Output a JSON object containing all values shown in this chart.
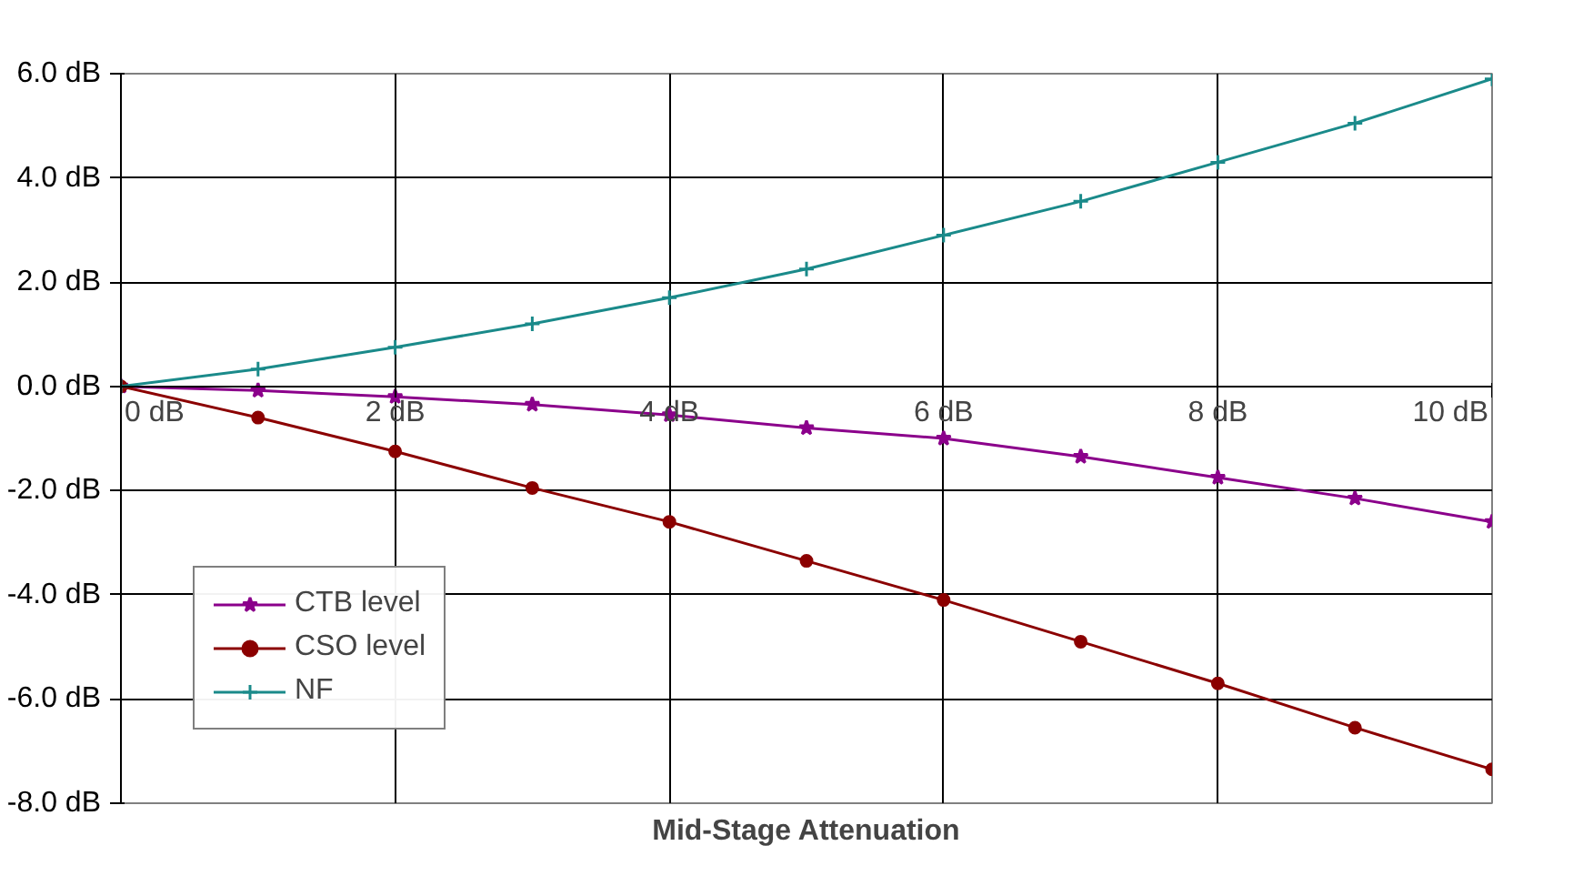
{
  "chart_data": {
    "type": "line",
    "xlabel": "Mid-Stage Attenuation",
    "x": [
      0,
      1,
      2,
      3,
      4,
      5,
      6,
      7,
      8,
      9,
      10
    ],
    "series": [
      {
        "name": "CTB level",
        "color": "#8b008b",
        "marker": "star",
        "values": [
          0,
          -0.08,
          -0.2,
          -0.35,
          -0.55,
          -0.8,
          -1.0,
          -1.35,
          -1.75,
          -2.15,
          -2.6
        ]
      },
      {
        "name": "CSO level",
        "color": "#8b0000",
        "marker": "circle",
        "values": [
          0,
          -0.6,
          -1.25,
          -1.95,
          -2.6,
          -3.35,
          -4.1,
          -4.9,
          -5.7,
          -6.55,
          -7.35
        ]
      },
      {
        "name": "NF",
        "color": "#1a8a8a",
        "marker": "cross",
        "values": [
          0,
          0.33,
          0.75,
          1.2,
          1.7,
          2.25,
          2.9,
          3.55,
          4.3,
          5.05,
          5.9
        ]
      }
    ],
    "xlim": [
      0,
      10
    ],
    "ylim": [
      -8,
      6
    ],
    "xticks": [
      {
        "value": 0,
        "label": "0 dB"
      },
      {
        "value": 2,
        "label": "2 dB"
      },
      {
        "value": 4,
        "label": "4 dB"
      },
      {
        "value": 6,
        "label": "6 dB"
      },
      {
        "value": 8,
        "label": "8 dB"
      },
      {
        "value": 10,
        "label": "10 dB"
      }
    ],
    "yticks": [
      {
        "value": -8,
        "label": "-8.0 dB"
      },
      {
        "value": -6,
        "label": "-6.0 dB"
      },
      {
        "value": -4,
        "label": "-4.0 dB"
      },
      {
        "value": -2,
        "label": "-2.0 dB"
      },
      {
        "value": 0,
        "label": "0.0 dB"
      },
      {
        "value": 2,
        "label": "2.0 dB"
      },
      {
        "value": 4,
        "label": "4.0 dB"
      },
      {
        "value": 6,
        "label": "6.0 dB"
      }
    ],
    "grid": true,
    "legend": "bottom left",
    "line_style": "solid"
  }
}
